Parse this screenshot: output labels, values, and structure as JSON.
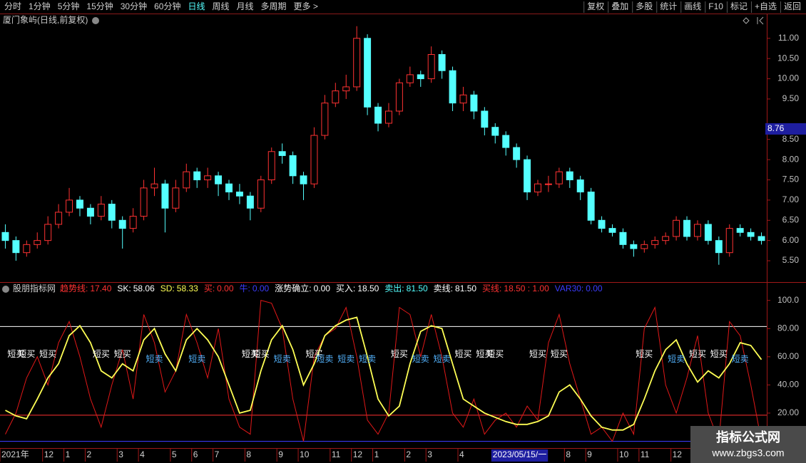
{
  "toolbar": {
    "tabs": [
      "分时",
      "1分钟",
      "5分钟",
      "15分钟",
      "30分钟",
      "60分钟",
      "日线",
      "周线",
      "月线",
      "多周期",
      "更多 >"
    ],
    "active_tab": 6,
    "buttons": [
      "复权",
      "叠加",
      "多股",
      "统计",
      "画线",
      "F10",
      "标记",
      "+自选",
      "返回"
    ]
  },
  "chart_data": [
    {
      "type": "candlestick",
      "title": "厦门象屿(日线,前复权)",
      "categories": [
        "2021年",
        null,
        null,
        null,
        "12",
        null,
        "1",
        null,
        "2",
        null,
        null,
        "3",
        null,
        "4",
        null,
        null,
        "5",
        null,
        "6",
        null,
        "7",
        null,
        null,
        "8",
        null,
        null,
        "9",
        null,
        "10",
        null,
        null,
        "11",
        null,
        "12",
        null,
        "1",
        null,
        null,
        "2",
        null,
        "3",
        null,
        null,
        "4",
        null,
        null,
        "2023/05/15/一",
        null,
        null,
        null,
        null,
        null,
        null,
        "8",
        null,
        "9",
        null,
        null,
        "10",
        null,
        "11",
        null,
        null,
        "12",
        null,
        "1",
        null,
        null,
        null,
        null,
        null,
        null
      ],
      "highlight_category": 46,
      "open": [
        6.2,
        6.0,
        5.7,
        5.9,
        6.0,
        6.4,
        6.7,
        7.0,
        6.8,
        6.6,
        6.9,
        6.5,
        6.3,
        6.6,
        7.3,
        7.4,
        6.8,
        7.3,
        7.7,
        7.5,
        7.6,
        7.4,
        7.2,
        7.1,
        6.8,
        7.5,
        8.2,
        8.1,
        7.6,
        7.4,
        8.6,
        9.4,
        9.7,
        9.8,
        11.0,
        9.3,
        8.9,
        9.2,
        9.9,
        10.1,
        10.0,
        10.6,
        10.2,
        9.4,
        9.6,
        9.2,
        8.8,
        8.6,
        8.3,
        8.0,
        7.2,
        7.4,
        7.4,
        7.7,
        7.5,
        7.2,
        6.5,
        6.3,
        6.2,
        5.9,
        5.8,
        5.9,
        6.0,
        6.1,
        6.5,
        6.1,
        6.4,
        6.0,
        5.7,
        6.3,
        6.2,
        6.1
      ],
      "high": [
        6.4,
        6.1,
        6.0,
        6.2,
        6.6,
        6.9,
        7.3,
        7.1,
        6.9,
        7.1,
        7.0,
        6.6,
        6.8,
        7.5,
        7.8,
        7.5,
        7.5,
        7.9,
        7.8,
        7.8,
        7.7,
        7.5,
        7.4,
        7.2,
        7.6,
        8.3,
        8.4,
        8.2,
        7.7,
        8.8,
        9.6,
        9.9,
        10.1,
        11.3,
        11.1,
        9.4,
        9.4,
        10.0,
        10.3,
        10.2,
        10.8,
        10.7,
        10.3,
        9.8,
        9.7,
        9.3,
        8.9,
        8.7,
        8.4,
        8.1,
        7.5,
        7.6,
        7.8,
        7.8,
        7.6,
        7.3,
        6.6,
        6.4,
        6.3,
        6.0,
        6.0,
        6.1,
        6.2,
        6.6,
        6.6,
        6.5,
        6.5,
        6.1,
        6.4,
        6.4,
        6.3,
        6.2
      ],
      "low": [
        5.8,
        5.5,
        5.6,
        5.8,
        5.9,
        6.3,
        6.6,
        6.6,
        6.4,
        6.5,
        6.3,
        5.8,
        6.2,
        6.5,
        7.1,
        6.2,
        6.7,
        7.2,
        7.3,
        7.3,
        7.1,
        7.0,
        6.9,
        6.5,
        6.7,
        7.4,
        7.9,
        7.4,
        7.0,
        7.3,
        8.5,
        9.3,
        9.5,
        9.7,
        9.1,
        8.7,
        8.8,
        9.1,
        9.8,
        9.8,
        9.9,
        10.0,
        9.2,
        9.2,
        9.0,
        8.6,
        8.4,
        8.1,
        7.8,
        7.0,
        7.1,
        7.2,
        7.3,
        7.3,
        7.0,
        6.4,
        6.2,
        6.1,
        5.8,
        5.6,
        5.7,
        5.8,
        5.9,
        6.0,
        6.0,
        6.0,
        5.9,
        5.4,
        5.6,
        6.1,
        6.0,
        5.9
      ],
      "close": [
        6.0,
        5.7,
        5.9,
        6.0,
        6.4,
        6.7,
        7.0,
        6.8,
        6.6,
        6.9,
        6.5,
        6.3,
        6.6,
        7.3,
        7.4,
        6.8,
        7.3,
        7.7,
        7.5,
        7.6,
        7.4,
        7.2,
        7.1,
        6.8,
        7.5,
        8.2,
        8.1,
        7.6,
        7.4,
        8.6,
        9.4,
        9.7,
        9.8,
        11.0,
        9.3,
        8.9,
        9.2,
        9.9,
        10.1,
        10.0,
        10.6,
        10.2,
        9.4,
        9.6,
        9.2,
        8.8,
        8.6,
        8.3,
        8.0,
        7.2,
        7.4,
        7.4,
        7.7,
        7.5,
        7.2,
        6.5,
        6.3,
        6.2,
        5.9,
        5.8,
        5.9,
        6.0,
        6.1,
        6.5,
        6.1,
        6.4,
        6.0,
        5.7,
        6.3,
        6.2,
        6.1,
        6.0
      ],
      "up_color": "#ff3232",
      "down_color": "#54ffff",
      "last_price": 8.76,
      "ylim": [
        4.99,
        11.56
      ],
      "yticks": [
        {
          "value": 5.5,
          "label": "5.50"
        },
        {
          "value": 6,
          "label": "6.00"
        },
        {
          "value": 6.5,
          "label": "6.50"
        },
        {
          "value": 7,
          "label": "7.00"
        },
        {
          "value": 7.5,
          "label": "7.50"
        },
        {
          "value": 8,
          "label": "8.00"
        },
        {
          "value": 8.5,
          "label": "8.50"
        },
        {
          "value": 9.5,
          "label": "9.50"
        },
        {
          "value": 10,
          "label": "10.00"
        },
        {
          "value": 10.5,
          "label": "10.50"
        },
        {
          "value": 11,
          "label": "11.00"
        }
      ]
    },
    {
      "type": "line",
      "title": "股朋指标网",
      "legend_items": [
        {
          "label": "趋势线:",
          "value": "17.40",
          "color": "#ff3232"
        },
        {
          "label": "SK:",
          "value": "58.06",
          "color": "#ffffff"
        },
        {
          "label": "SD:",
          "value": "58.33",
          "color": "#ffff54"
        },
        {
          "label": "买:",
          "value": "0.00",
          "color": "#ff3232"
        },
        {
          "label": "牛:",
          "value": "0.00",
          "color": "#3c3cff"
        },
        {
          "label": "涨势确立:",
          "value": "0.00",
          "color": "#ffffff"
        },
        {
          "label": "买入:",
          "value": "18.50",
          "color": "#ffffff"
        },
        {
          "label": "卖出:",
          "value": "81.50",
          "color": "#54ffff"
        },
        {
          "label": "卖线:",
          "value": "81.50",
          "color": "#ffffff"
        },
        {
          "label": "买线:",
          "value": "18.50 : 1.00",
          "color": "#ff3232"
        },
        {
          "label": "VAR30:",
          "value": "0.00",
          "color": "#3c3cff"
        }
      ],
      "series": [
        {
          "color": "#ffff54",
          "values": [
            22,
            18,
            16,
            30,
            45,
            55,
            75,
            82,
            70,
            50,
            45,
            55,
            50,
            72,
            80,
            62,
            50,
            72,
            80,
            72,
            60,
            40,
            20,
            22,
            50,
            72,
            82,
            65,
            40,
            55,
            75,
            82,
            86,
            88,
            60,
            30,
            18,
            25,
            55,
            78,
            82,
            80,
            55,
            30,
            25,
            20,
            17,
            14,
            12,
            12,
            14,
            18,
            35,
            40,
            30,
            18,
            10,
            8,
            8,
            12,
            30,
            50,
            65,
            72,
            55,
            42,
            50,
            45,
            55,
            70,
            68,
            58
          ]
        },
        {
          "color": "#e01818",
          "values": [
            5,
            20,
            45,
            60,
            40,
            70,
            85,
            60,
            30,
            10,
            40,
            65,
            30,
            90,
            70,
            35,
            50,
            90,
            70,
            45,
            80,
            30,
            10,
            5,
            100,
            98,
            80,
            30,
            0,
            60,
            75,
            80,
            95,
            60,
            15,
            5,
            20,
            95,
            90,
            60,
            90,
            60,
            20,
            10,
            30,
            5,
            15,
            20,
            10,
            25,
            15,
            70,
            90,
            55,
            30,
            5,
            10,
            0,
            20,
            5,
            80,
            95,
            40,
            20,
            45,
            75,
            20,
            0,
            85,
            75,
            40,
            0
          ]
        }
      ],
      "signals": [
        null,
        "短买",
        "短买",
        null,
        "短买",
        null,
        null,
        null,
        null,
        "短买",
        null,
        "短买",
        null,
        null,
        "短卖",
        null,
        null,
        null,
        "短卖",
        null,
        null,
        null,
        null,
        "短买",
        "短买",
        null,
        "短卖",
        null,
        null,
        "短买",
        "短卖",
        null,
        "短卖",
        null,
        "短卖",
        null,
        null,
        "短买",
        null,
        "短卖",
        null,
        "短卖",
        null,
        "短买",
        null,
        "短买",
        "短买",
        null,
        null,
        null,
        "短买",
        null,
        "短买",
        null,
        null,
        null,
        null,
        null,
        null,
        null,
        "短买",
        null,
        null,
        "短卖",
        null,
        "短买",
        null,
        "短买",
        null,
        "短卖",
        null,
        null
      ],
      "signal_colors": {
        "短买": "#ffffff",
        "短卖": "#54b4ff"
      },
      "levels": [
        {
          "value": 81.5,
          "color": "#ffffff"
        },
        {
          "value": 18.5,
          "color": "#ff3232"
        },
        {
          "value": 0,
          "color": "#3c3cff"
        }
      ],
      "ylim": [
        -4.3,
        112
      ],
      "yticks": [
        {
          "value": 20,
          "label": "20.00"
        },
        {
          "value": 40,
          "label": "40.00"
        },
        {
          "value": 60,
          "label": "60.00"
        },
        {
          "value": 80,
          "label": "80.00"
        },
        {
          "value": 100,
          "label": "100.0"
        }
      ]
    }
  ],
  "watermark": {
    "title": "指标公式网",
    "url": "www.zbgs3.com"
  }
}
